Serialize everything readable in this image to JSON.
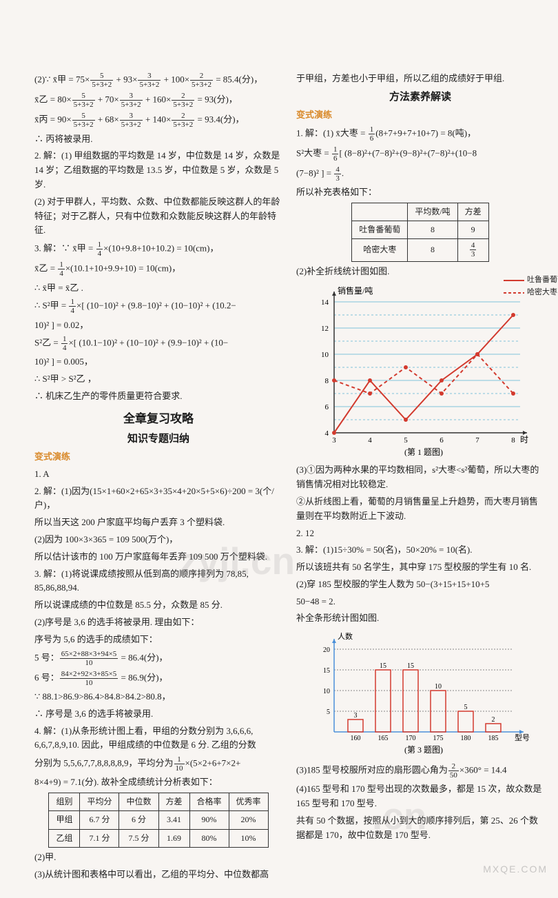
{
  "left": {
    "eq2a": "(2)∵ x̄甲 = 75×",
    "eq2b": " + 93×",
    "eq2c": " + 100×",
    "eq2d": " = 85.4(分)，",
    "frac5": {
      "n": "5",
      "d": "5+3+2"
    },
    "frac3": {
      "n": "3",
      "d": "5+3+2"
    },
    "frac2": {
      "n": "2",
      "d": "5+3+2"
    },
    "eqYi": "x̄乙 = 80×",
    "eqYi2": " + 70×",
    "eqYi3": " + 160×",
    "eqYi4": " = 93(分)，",
    "eqBing": "x̄丙 = 90×",
    "eqBing2": " + 68×",
    "eqBing3": " + 140×",
    "eqBing4": " = 93.4(分)，",
    "res1": "∴ 丙将被录用.",
    "p2_1": "2. 解：(1) 甲组数据的平均数是 14 岁，中位数是 14 岁，众数是 14 岁；乙组数据的平均数是 13.5 岁，中位数是 5 岁，众数是 5 岁.",
    "p2_2": "(2) 对于甲群人，平均数、众数、中位数都能反映这群人的年龄特征；对于乙群人，只有中位数和众数能反映这群人的年龄特征.",
    "p3_1a": "3. 解：∵ x̄甲 = ",
    "frac14": {
      "n": "1",
      "d": "4"
    },
    "p3_1b": "×(10+9.8+10+10.2) = 10(cm)，",
    "p3_2a": "x̄乙 = ",
    "p3_2b": "×(10.1+10+9.9+10) = 10(cm)，",
    "p3_3": "∴ x̄甲 = x̄乙 .",
    "p3_4a": "∴ S²甲 = ",
    "p3_4b": "×[ (10−10)² + (9.8−10)² + (10−10)² + (10.2−",
    "p3_5": "10)² ] = 0.02，",
    "p3_6a": "S²乙 = ",
    "p3_6b": "×[ (10.1−10)² + (10−10)² + (9.9−10)² + (10−",
    "p3_7": "10)² ] = 0.005，",
    "p3_8": "∴ S²甲 > S²乙 ，",
    "p3_9": "∴ 机床乙生产的零件质量更符合要求.",
    "title_big": "全章复习攻略",
    "title_mid1": "知识专题归纳",
    "orange1": "变式演练",
    "q1": "1. A",
    "q2_1": "2. 解：(1)因为(15×1+60×2+65×3+35×4+20×5+5×6)÷200 = 3(个/户)，",
    "q2_2": "所以当天这 200 户家庭平均每户丢弃 3 个塑料袋.",
    "q2_3": "(2)因为 100×3×365 = 109 500(万个)，",
    "q2_4": "所以估计该市的 100 万户家庭每年丢弃 109 500 万个塑料袋.",
    "q3_1": "3. 解：(1)将说课成绩按照从低到高的顺序排列为 78,85, 85,86,88,94.",
    "q3_2": "所以说课成绩的中位数是 85.5 分，众数是 85 分.",
    "q3_3": "(2)序号是 3,6 的选手将被录用. 理由如下：",
    "q3_4": "序号为 5,6 的选手的成绩如下：",
    "q3_5a": "5 号：",
    "q3_5b": " = 86.4(分)，",
    "frac5num": {
      "n": "65×2+88×3+94×5",
      "d": "10"
    },
    "q3_6a": "6 号：",
    "q3_6b": " = 86.9(分)，",
    "frac6num": {
      "n": "84×2+92×3+85×5",
      "d": "10"
    },
    "q3_7": "∵ 88.1>86.9>86.4>84.8>84.2>80.8，",
    "q3_8": "∴ 序号是 3,6 的选手将被录用.",
    "q4_1": "4. 解：(1)从条形统计图上看，甲组的分数分别为 3,6,6,6, 6,6,7,8,9,10. 因此，甲组成绩的中位数是 6 分. 乙组的分数",
    "q4_2a": "分别为 5,5,6,7,7,8,8,8,8,9，平均分为",
    "frac110": {
      "n": "1",
      "d": "10"
    },
    "q4_2b": "×(5×2+6+7×2+",
    "q4_3": "8×4+9) = 7.1(分). 故补全成绩统计分析表如下：",
    "table1": {
      "headers": [
        "组别",
        "平均分",
        "中位数",
        "方差",
        "合格率",
        "优秀率"
      ],
      "rows": [
        [
          "甲组",
          "6.7 分",
          "6 分",
          "3.41",
          "90%",
          "20%"
        ],
        [
          "乙组",
          "7.1 分",
          "7.5 分",
          "1.69",
          "80%",
          "10%"
        ]
      ]
    },
    "q4_4": "(2)甲.",
    "q4_5": "(3)从统计图和表格中可以看出，乙组的平均分、中位数都高"
  },
  "right": {
    "top1": "于甲组，方差也小于甲组，所以乙组的成绩好于甲组.",
    "title_mid2": "方法素养解读",
    "orange2": "变式演练",
    "r1_1a": "1. 解：(1) x̄大枣 = ",
    "frac16": {
      "n": "1",
      "d": "6"
    },
    "r1_1b": "(8+7+9+7+10+7) = 8(吨)，",
    "r1_2a": "S²大枣 = ",
    "r1_2b": "[ (8−8)²+(7−8)²+(9−8)²+(7−8)²+(10−8",
    "r1_3a": "(7−8)² ] = ",
    "frac43": {
      "n": "4",
      "d": "3"
    },
    "r1_3b": ".",
    "r1_4": "所以补充表格如下：",
    "table2": {
      "headers": [
        "",
        "平均数/吨",
        "方差"
      ],
      "rows": [
        [
          "吐鲁番葡萄",
          "8",
          "9"
        ],
        [
          "哈密大枣",
          "8",
          "4/3"
        ]
      ]
    },
    "r2": "(2)补全折线统计图如图.",
    "legend1": "吐鲁番葡萄",
    "legend2": "哈密大枣",
    "chart1": {
      "ylabel": "销售量/吨",
      "xlabel": "时",
      "caption": "(第 1 题图)",
      "yticks": [
        4,
        6,
        8,
        10,
        12,
        14
      ],
      "xticks": [
        3,
        4,
        5,
        6,
        7,
        8
      ],
      "line1_color": "#d23a2e",
      "line2_color": "#d23a2e",
      "grid_color": "#7fc4d9",
      "line1": [
        [
          3,
          4
        ],
        [
          4,
          8
        ],
        [
          5,
          5
        ],
        [
          6,
          8
        ],
        [
          7,
          10
        ],
        [
          8,
          13
        ]
      ],
      "line2": [
        [
          3,
          8
        ],
        [
          4,
          7
        ],
        [
          5,
          9
        ],
        [
          6,
          7
        ],
        [
          7,
          10
        ],
        [
          8,
          7
        ]
      ]
    },
    "r3_1": "(3)①因为两种水果的平均数相同，s²大枣<s²葡萄，所以大枣的销售情况相对比较稳定.",
    "r3_2": "②从折线图上看，葡萄的月销售量呈上升趋势，而大枣月销售量则在平均数附近上下波动.",
    "r_q2": "2. 12",
    "r_q3_1": "3. 解：(1)15÷30% = 50(名)，50×20% = 10(名).",
    "r_q3_2": "所以该班共有 50 名学生，其中穿 175 型校服的学生有 10 名.",
    "r_q3_3": "(2)穿 185 型校服的学生人数为 50−(3+15+15+10+5",
    "r_q3_4": "50−48 = 2.",
    "r_q3_5": "补全条形统计图如图.",
    "chart2": {
      "ylabel": "人数",
      "xlabel": "型号",
      "caption": "(第 3 题图)",
      "yticks": [
        5,
        10,
        15,
        20
      ],
      "xticks": [
        "160",
        "165",
        "170",
        "175",
        "180",
        "185"
      ],
      "bars": [
        3,
        15,
        15,
        10,
        5,
        2
      ],
      "bar_color": "#d23a2e",
      "axis_color": "#4a90d9"
    },
    "r_q3_6a": "(3)185 型号校服所对应的扇形圆心角为",
    "frac250": {
      "n": "2",
      "d": "50"
    },
    "r_q3_6b": "×360° = 14.4",
    "r_q3_7": "(4)165 型号和 170 型号出现的次数最多，都是 15 次，故众数是 165 型号和 170 型号.",
    "r_q3_8": "共有 50 个数据，按照从小到大的顺序排列后，第 25、26 个数据都是 170，故中位数是 170 型号."
  },
  "watermarks": {
    "w1": "zyjl.cn",
    "w2": ".cn",
    "footer": "MXQE.COM"
  }
}
